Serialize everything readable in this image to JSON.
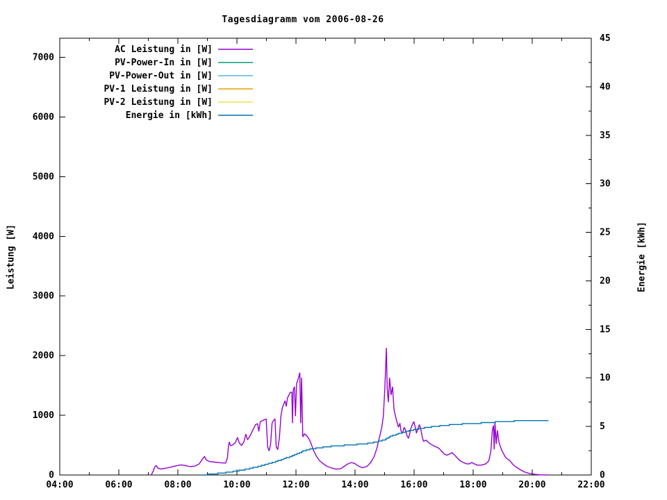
{
  "title": "Tagesdiagramm vom 2006-08-26",
  "axes": {
    "x": {
      "min": 4,
      "max": 22,
      "minor_step": 1,
      "ticks": [
        {
          "v": 4,
          "label": "04:00"
        },
        {
          "v": 6,
          "label": "06:00"
        },
        {
          "v": 8,
          "label": "08:00"
        },
        {
          "v": 10,
          "label": "10:00"
        },
        {
          "v": 12,
          "label": "12:00"
        },
        {
          "v": 14,
          "label": "14:00"
        },
        {
          "v": 16,
          "label": "16:00"
        },
        {
          "v": 18,
          "label": "18:00"
        },
        {
          "v": 20,
          "label": "20:00"
        },
        {
          "v": 22,
          "label": "22:00"
        }
      ]
    },
    "y_left": {
      "label": "Leistung [W]",
      "min": 0,
      "max": 7320,
      "ticks": [
        {
          "v": 0,
          "label": "0"
        },
        {
          "v": 1000,
          "label": "1000"
        },
        {
          "v": 2000,
          "label": "2000"
        },
        {
          "v": 3000,
          "label": "3000"
        },
        {
          "v": 4000,
          "label": "4000"
        },
        {
          "v": 5000,
          "label": "5000"
        },
        {
          "v": 6000,
          "label": "6000"
        },
        {
          "v": 7000,
          "label": "7000"
        }
      ]
    },
    "y_right": {
      "label": "Energie [kWh]",
      "min": 0,
      "max": 45,
      "minor_step": 2.5,
      "ticks": [
        {
          "v": 0,
          "label": "0"
        },
        {
          "v": 5,
          "label": "5"
        },
        {
          "v": 10,
          "label": "10"
        },
        {
          "v": 15,
          "label": "15"
        },
        {
          "v": 20,
          "label": "20"
        },
        {
          "v": 25,
          "label": "25"
        },
        {
          "v": 30,
          "label": "30"
        },
        {
          "v": 35,
          "label": "35"
        },
        {
          "v": 40,
          "label": "40"
        },
        {
          "v": 45,
          "label": "45"
        }
      ]
    }
  },
  "legend": {
    "position": "top-left-inside"
  },
  "chart_data": {
    "type": "line",
    "title": "Tagesdiagramm vom 2006-08-26",
    "x_axis": {
      "unit": "time of day [hh:mm]",
      "range": [
        4,
        22
      ],
      "grid": false
    },
    "y_left_axis": {
      "label": "Leistung [W]",
      "range": [
        0,
        7320
      ]
    },
    "y_right_axis": {
      "label": "Energie [kWh]",
      "range": [
        0,
        45
      ]
    },
    "series": [
      {
        "name": "AC Leistung in [W]",
        "color": "#9400d3",
        "axis": "left",
        "visible": true,
        "render": "line",
        "points": [
          [
            7.1,
            0
          ],
          [
            7.17,
            70
          ],
          [
            7.22,
            140
          ],
          [
            7.27,
            160
          ],
          [
            7.32,
            115
          ],
          [
            7.42,
            100
          ],
          [
            7.55,
            110
          ],
          [
            7.75,
            130
          ],
          [
            7.95,
            155
          ],
          [
            8.1,
            170
          ],
          [
            8.25,
            160
          ],
          [
            8.42,
            140
          ],
          [
            8.58,
            150
          ],
          [
            8.72,
            185
          ],
          [
            8.83,
            265
          ],
          [
            8.9,
            310
          ],
          [
            8.97,
            250
          ],
          [
            9.08,
            225
          ],
          [
            9.25,
            215
          ],
          [
            9.45,
            205
          ],
          [
            9.62,
            200
          ],
          [
            9.68,
            290
          ],
          [
            9.71,
            470
          ],
          [
            9.74,
            555
          ],
          [
            9.78,
            490
          ],
          [
            9.86,
            505
          ],
          [
            9.95,
            545
          ],
          [
            10.02,
            630
          ],
          [
            10.08,
            535
          ],
          [
            10.16,
            495
          ],
          [
            10.24,
            560
          ],
          [
            10.3,
            685
          ],
          [
            10.36,
            590
          ],
          [
            10.45,
            660
          ],
          [
            10.55,
            765
          ],
          [
            10.63,
            845
          ],
          [
            10.7,
            860
          ],
          [
            10.74,
            730
          ],
          [
            10.79,
            890
          ],
          [
            10.88,
            915
          ],
          [
            10.99,
            940
          ],
          [
            11.04,
            470
          ],
          [
            11.09,
            405
          ],
          [
            11.14,
            520
          ],
          [
            11.19,
            870
          ],
          [
            11.24,
            915
          ],
          [
            11.29,
            940
          ],
          [
            11.33,
            475
          ],
          [
            11.38,
            425
          ],
          [
            11.44,
            635
          ],
          [
            11.49,
            985
          ],
          [
            11.54,
            1130
          ],
          [
            11.59,
            1195
          ],
          [
            11.63,
            1245
          ],
          [
            11.67,
            1150
          ],
          [
            11.71,
            1290
          ],
          [
            11.76,
            1340
          ],
          [
            11.81,
            1385
          ],
          [
            11.86,
            1390
          ],
          [
            11.88,
            870
          ],
          [
            11.91,
            1430
          ],
          [
            11.95,
            1480
          ],
          [
            11.98,
            985
          ],
          [
            12.02,
            1530
          ],
          [
            12.06,
            1590
          ],
          [
            12.1,
            1660
          ],
          [
            12.13,
            1715
          ],
          [
            12.16,
            870
          ],
          [
            12.19,
            1630
          ],
          [
            12.23,
            640
          ],
          [
            12.29,
            690
          ],
          [
            12.36,
            660
          ],
          [
            12.43,
            615
          ],
          [
            12.5,
            540
          ],
          [
            12.6,
            405
          ],
          [
            12.7,
            310
          ],
          [
            12.8,
            240
          ],
          [
            12.92,
            190
          ],
          [
            13.05,
            145
          ],
          [
            13.2,
            118
          ],
          [
            13.35,
            100
          ],
          [
            13.5,
            102
          ],
          [
            13.62,
            140
          ],
          [
            13.75,
            185
          ],
          [
            13.88,
            210
          ],
          [
            14.0,
            190
          ],
          [
            14.12,
            148
          ],
          [
            14.25,
            122
          ],
          [
            14.4,
            142
          ],
          [
            14.53,
            210
          ],
          [
            14.64,
            300
          ],
          [
            14.74,
            450
          ],
          [
            14.83,
            640
          ],
          [
            14.9,
            785
          ],
          [
            14.96,
            995
          ],
          [
            15.01,
            1460
          ],
          [
            15.06,
            2130
          ],
          [
            15.09,
            1450
          ],
          [
            15.13,
            1220
          ],
          [
            15.17,
            1630
          ],
          [
            15.22,
            1340
          ],
          [
            15.27,
            1480
          ],
          [
            15.32,
            1100
          ],
          [
            15.37,
            985
          ],
          [
            15.42,
            890
          ],
          [
            15.47,
            800
          ],
          [
            15.52,
            870
          ],
          [
            15.56,
            730
          ],
          [
            15.61,
            700
          ],
          [
            15.66,
            800
          ],
          [
            15.71,
            755
          ],
          [
            15.76,
            660
          ],
          [
            15.81,
            615
          ],
          [
            15.85,
            685
          ],
          [
            15.89,
            775
          ],
          [
            15.94,
            845
          ],
          [
            15.99,
            895
          ],
          [
            16.04,
            800
          ],
          [
            16.08,
            700
          ],
          [
            16.13,
            775
          ],
          [
            16.18,
            845
          ],
          [
            16.23,
            755
          ],
          [
            16.28,
            630
          ],
          [
            16.32,
            565
          ],
          [
            16.4,
            585
          ],
          [
            16.5,
            540
          ],
          [
            16.57,
            515
          ],
          [
            16.65,
            492
          ],
          [
            16.75,
            470
          ],
          [
            16.85,
            445
          ],
          [
            16.93,
            400
          ],
          [
            17.02,
            352
          ],
          [
            17.11,
            332
          ],
          [
            17.2,
            350
          ],
          [
            17.28,
            375
          ],
          [
            17.38,
            330
          ],
          [
            17.47,
            280
          ],
          [
            17.57,
            235
          ],
          [
            17.67,
            210
          ],
          [
            17.77,
            188
          ],
          [
            17.87,
            186
          ],
          [
            17.95,
            210
          ],
          [
            18.04,
            186
          ],
          [
            18.14,
            165
          ],
          [
            18.28,
            165
          ],
          [
            18.43,
            188
          ],
          [
            18.53,
            235
          ],
          [
            18.6,
            400
          ],
          [
            18.65,
            750
          ],
          [
            18.69,
            830
          ],
          [
            18.71,
            430
          ],
          [
            18.74,
            880
          ],
          [
            18.78,
            520
          ],
          [
            18.82,
            750
          ],
          [
            18.87,
            560
          ],
          [
            18.92,
            480
          ],
          [
            18.98,
            400
          ],
          [
            19.1,
            290
          ],
          [
            19.23,
            245
          ],
          [
            19.36,
            170
          ],
          [
            19.47,
            128
          ],
          [
            19.62,
            80
          ],
          [
            19.77,
            45
          ],
          [
            19.92,
            25
          ],
          [
            20.08,
            12
          ],
          [
            20.25,
            4
          ],
          [
            20.5,
            0
          ]
        ]
      },
      {
        "name": "PV-Power-In in [W]",
        "color": "#009e73",
        "axis": "left",
        "visible": false,
        "render": "line",
        "points": []
      },
      {
        "name": "PV-Power-Out in [W]",
        "color": "#56b4e9",
        "axis": "left",
        "visible": false,
        "render": "line",
        "points": []
      },
      {
        "name": "PV-1 Leistung in [W]",
        "color": "#e69f00",
        "axis": "left",
        "visible": false,
        "render": "line",
        "points": []
      },
      {
        "name": "PV-2 Leistung in [W]",
        "color": "#f0e442",
        "axis": "left",
        "visible": false,
        "render": "line",
        "points": []
      },
      {
        "name": "Energie in [kWh]",
        "color": "#0072b2",
        "axis": "right",
        "visible": true,
        "render": "steps",
        "points": [
          [
            8.83,
            0
          ],
          [
            9.0,
            0.05
          ],
          [
            9.25,
            0.12
          ],
          [
            9.5,
            0.2
          ],
          [
            9.75,
            0.3
          ],
          [
            10.0,
            0.42
          ],
          [
            10.25,
            0.56
          ],
          [
            10.5,
            0.72
          ],
          [
            10.75,
            0.9
          ],
          [
            11.0,
            1.1
          ],
          [
            11.25,
            1.32
          ],
          [
            11.5,
            1.56
          ],
          [
            11.75,
            1.85
          ],
          [
            12.0,
            2.15
          ],
          [
            12.25,
            2.48
          ],
          [
            12.5,
            2.68
          ],
          [
            12.75,
            2.8
          ],
          [
            13.0,
            2.9
          ],
          [
            13.25,
            2.97
          ],
          [
            13.5,
            3.02
          ],
          [
            13.75,
            3.08
          ],
          [
            14.0,
            3.14
          ],
          [
            14.25,
            3.2
          ],
          [
            14.5,
            3.28
          ],
          [
            14.75,
            3.42
          ],
          [
            15.0,
            3.65
          ],
          [
            15.25,
            4.05
          ],
          [
            15.5,
            4.3
          ],
          [
            15.75,
            4.5
          ],
          [
            16.0,
            4.67
          ],
          [
            16.25,
            4.82
          ],
          [
            16.5,
            4.93
          ],
          [
            16.75,
            5.02
          ],
          [
            17.0,
            5.1
          ],
          [
            17.25,
            5.17
          ],
          [
            17.5,
            5.23
          ],
          [
            17.75,
            5.28
          ],
          [
            18.0,
            5.32
          ],
          [
            18.25,
            5.35
          ],
          [
            18.5,
            5.39
          ],
          [
            18.75,
            5.46
          ],
          [
            19.0,
            5.51
          ],
          [
            19.25,
            5.54
          ],
          [
            19.5,
            5.56
          ],
          [
            19.75,
            5.58
          ],
          [
            20.0,
            5.59
          ],
          [
            20.25,
            5.6
          ],
          [
            20.55,
            5.61
          ]
        ]
      }
    ]
  }
}
